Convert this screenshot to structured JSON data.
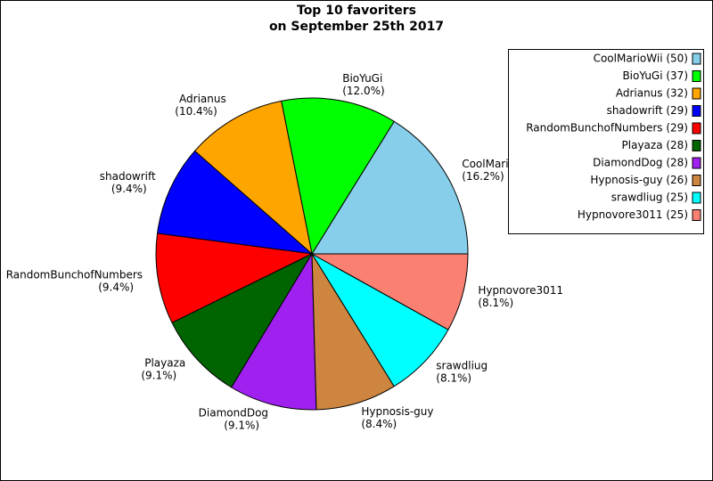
{
  "chart_data": {
    "type": "pie",
    "title": "Top 10 favoriters\non September 25th 2017",
    "categories": [
      "CoolMarioWii",
      "BioYuGi",
      "Adrianus",
      "shadowrift",
      "RandomBunchofNumbers",
      "Playaza",
      "DiamondDog",
      "Hypnosis-guy",
      "srawdliug",
      "Hypnovore3011"
    ],
    "values": [
      16.2,
      12.0,
      10.4,
      9.4,
      9.4,
      9.1,
      9.1,
      8.4,
      8.1,
      8.1
    ],
    "value_labels": [
      "(16.2%)",
      "(12.0%)",
      "(10.4%)",
      "(9.4%)",
      "(9.4%)",
      "(9.1%)",
      "(9.1%)",
      "(8.4%)",
      "(8.1%)",
      "(8.1%)"
    ],
    "colors": [
      "#87ceeb",
      "#00ff00",
      "#ffa500",
      "#0000ff",
      "#ff0000",
      "#006400",
      "#a020f0",
      "#cd853f",
      "#00ffff",
      "#fa8072"
    ],
    "legend": [
      "CoolMarioWii (50)",
      "BioYuGi (37)",
      "Adrianus (32)",
      "shadowrift (29)",
      "RandomBunchofNumbers (29)",
      "Playaza (28)",
      "DiamondDog (28)",
      "Hypnosis-guy (26)",
      "srawdliug (25)",
      "Hypnovore3011 (25)"
    ],
    "legend_position": "upper right"
  }
}
